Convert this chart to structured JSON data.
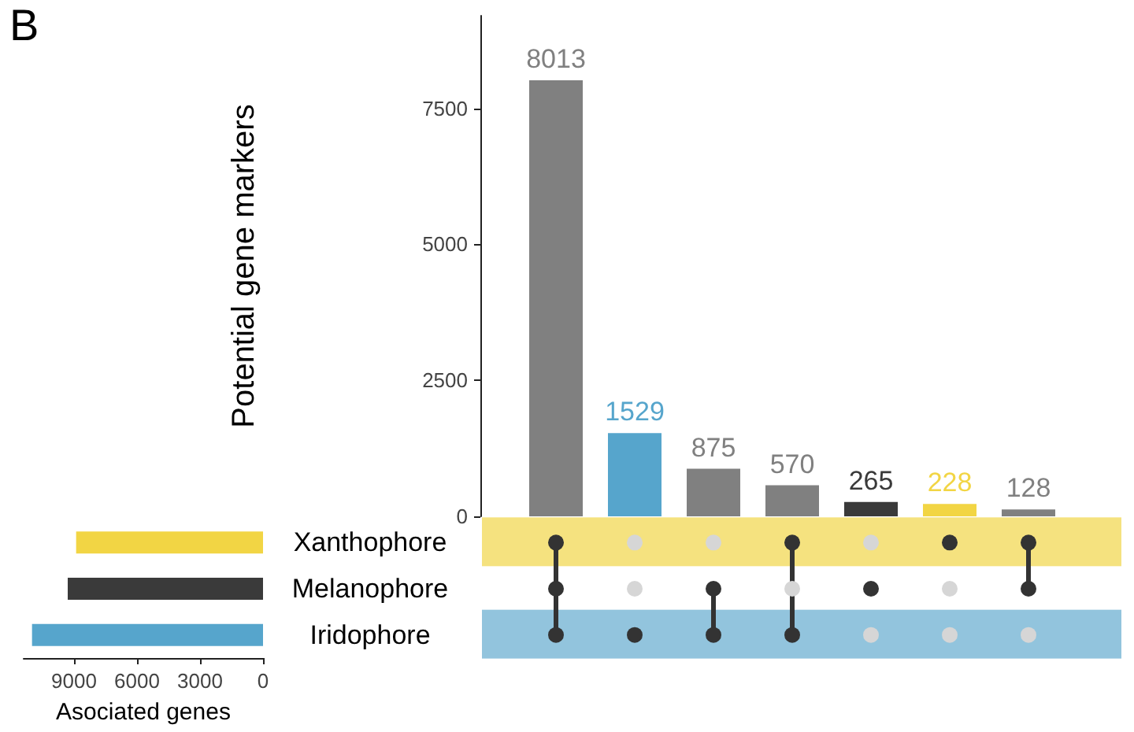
{
  "chart_data": [
    {
      "type": "bar",
      "ylabel": "Potential gene markers",
      "annotations": [
        "B"
      ],
      "categories": [
        null,
        null,
        null,
        null,
        null,
        null,
        null
      ],
      "values": [
        8013,
        1529,
        875,
        570,
        265,
        228,
        128
      ],
      "colors": [
        "#808080",
        "#56a5cc",
        "#808080",
        "#808080",
        "#3a3a3a",
        "#f2d544",
        "#808080"
      ],
      "ylim": [
        0,
        9200
      ],
      "yticks": [
        0,
        2500,
        5000,
        7500
      ],
      "data_labels": true
    },
    {
      "type": "bar",
      "orientation": "horizontal",
      "xlabel": "Asociated genes",
      "categories": [
        "Xanthophore",
        "Melanophore",
        "Iridophore"
      ],
      "values": [
        8900,
        9300,
        11000
      ],
      "colors": [
        "#f2d544",
        "#3a3a3a",
        "#56a5cc"
      ],
      "xlim": [
        11400,
        0
      ],
      "xticks": [
        9000,
        6000,
        3000,
        0
      ]
    }
  ]
}
